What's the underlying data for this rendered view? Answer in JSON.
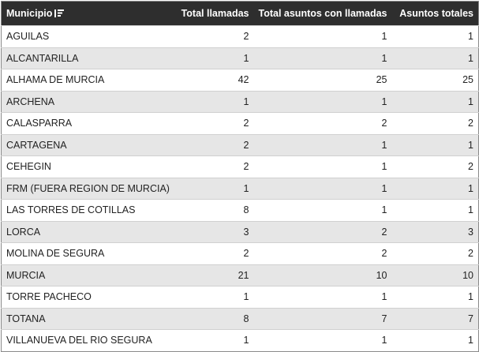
{
  "table": {
    "header": [
      "Municipio",
      "Total llamadas",
      "Total asuntos con llamadas",
      "Asuntos totales"
    ],
    "rows": [
      [
        "AGUILAS",
        2,
        1,
        1
      ],
      [
        "ALCANTARILLA",
        1,
        1,
        1
      ],
      [
        "ALHAMA DE MURCIA",
        42,
        25,
        25
      ],
      [
        "ARCHENA",
        1,
        1,
        1
      ],
      [
        "CALASPARRA",
        2,
        2,
        2
      ],
      [
        "CARTAGENA",
        2,
        1,
        1
      ],
      [
        "CEHEGIN",
        2,
        1,
        2
      ],
      [
        "FRM (FUERA REGION DE MURCIA)",
        1,
        1,
        1
      ],
      [
        "LAS TORRES DE COTILLAS",
        8,
        1,
        1
      ],
      [
        "LORCA",
        3,
        2,
        3
      ],
      [
        "MOLINA DE SEGURA",
        2,
        2,
        2
      ],
      [
        "MURCIA",
        21,
        10,
        10
      ],
      [
        "TORRE PACHECO",
        1,
        1,
        1
      ],
      [
        "TOTANA",
        8,
        7,
        7
      ],
      [
        "VILLANUEVA DEL RIO SEGURA",
        1,
        1,
        1
      ]
    ]
  }
}
